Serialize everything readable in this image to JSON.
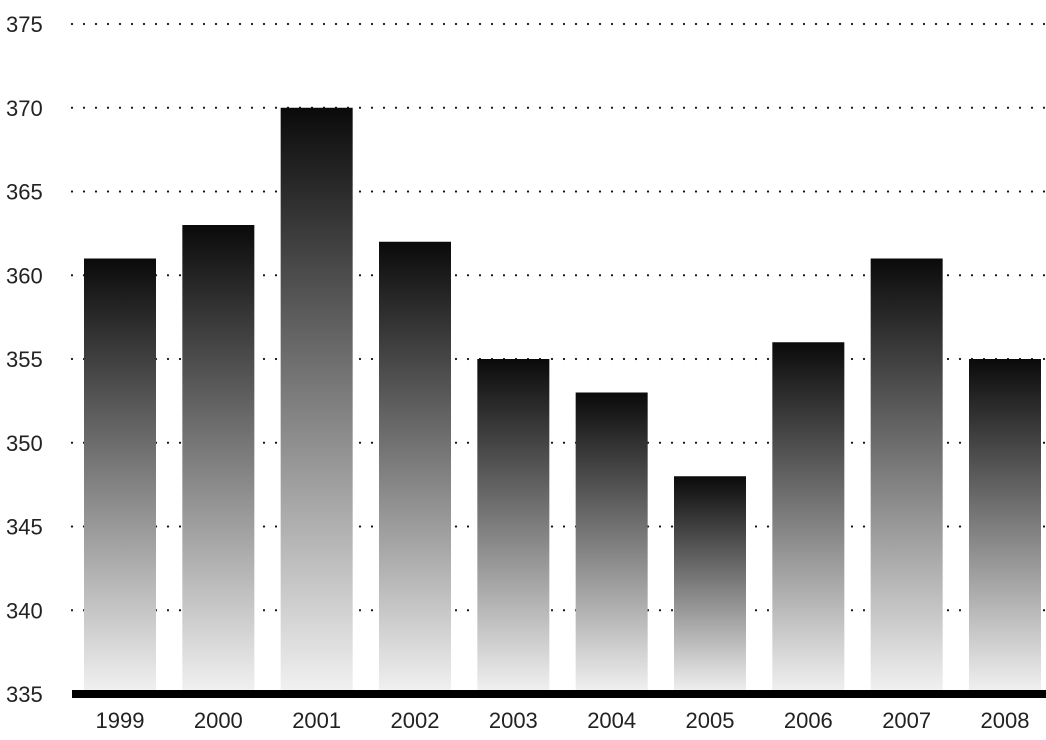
{
  "chart_data": {
    "type": "bar",
    "title": "",
    "xlabel": "",
    "ylabel": "",
    "categories": [
      "1999",
      "2000",
      "2001",
      "2002",
      "2003",
      "2004",
      "2005",
      "2006",
      "2007",
      "2008"
    ],
    "values": [
      361,
      363,
      370,
      362,
      355,
      353,
      348,
      356,
      361,
      355
    ],
    "ylim": [
      335,
      375
    ],
    "yticks": [
      "335",
      "340",
      "345",
      "350",
      "355",
      "360",
      "365",
      "370",
      "375"
    ],
    "grid": "horizontal-dotted",
    "legend": "none",
    "colors": {
      "bar_top": "#0a0a0a",
      "bar_bottom": "#f2f2f2",
      "grid": "#111111",
      "baseline": "#000000",
      "text": "#222222"
    }
  }
}
